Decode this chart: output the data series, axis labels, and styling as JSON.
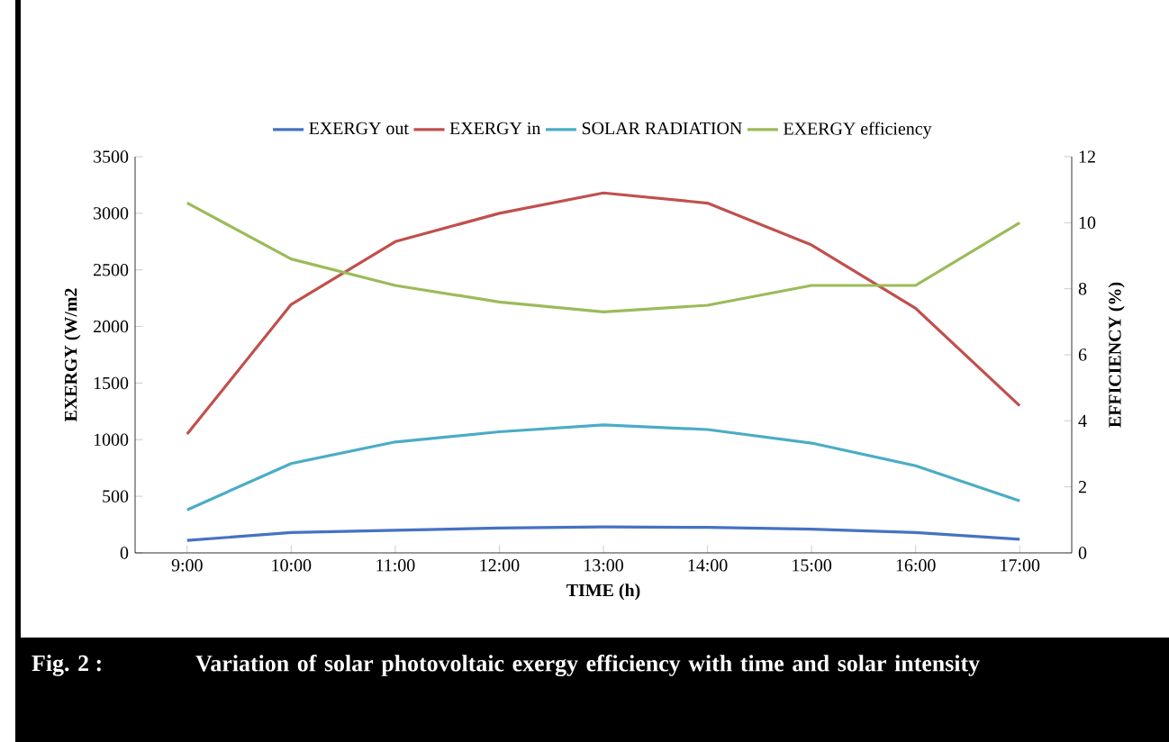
{
  "chart_data": {
    "type": "line",
    "xlabel": "TIME (h)",
    "ylabel": "EXERGY (W/m2",
    "y2label": "EFFICIENCY (%)",
    "categories": [
      "9:00",
      "10:00",
      "11:00",
      "12:00",
      "13:00",
      "14:00",
      "15:00",
      "16:00",
      "17:00"
    ],
    "series": [
      {
        "name": "EXERGY out",
        "color": "#4572c4",
        "values": [
          110,
          180,
          200,
          220,
          230,
          225,
          210,
          180,
          120
        ]
      },
      {
        "name": "EXERGY in",
        "color": "#c0504d",
        "values": [
          1050,
          2195,
          2750,
          3000,
          3180,
          3090,
          2720,
          2160,
          1300
        ]
      },
      {
        "name": "SOLAR RADIATION",
        "color": "#4bacc6",
        "values": [
          380,
          790,
          980,
          1070,
          1130,
          1090,
          970,
          770,
          460
        ]
      },
      {
        "name": "EXERGY efficiency",
        "color": "#9bbb59",
        "axis": "y2",
        "values": [
          10.6,
          8.9,
          8.1,
          7.6,
          7.3,
          7.5,
          8.1,
          8.1,
          10.0
        ]
      }
    ],
    "ylim": [
      0,
      3500
    ],
    "yticks": [
      0,
      500,
      1000,
      1500,
      2000,
      2500,
      3000,
      3500
    ],
    "y2lim": [
      0,
      12
    ],
    "y2ticks": [
      0,
      2,
      4,
      6,
      8,
      10,
      12
    ],
    "legend": "top",
    "grid": false,
    "marker": "none",
    "line_style": "solid",
    "annotations": [
      "Fig. 2 :",
      "Variation of solar photovoltaic exergy efficiency with time and solar intensity"
    ]
  }
}
